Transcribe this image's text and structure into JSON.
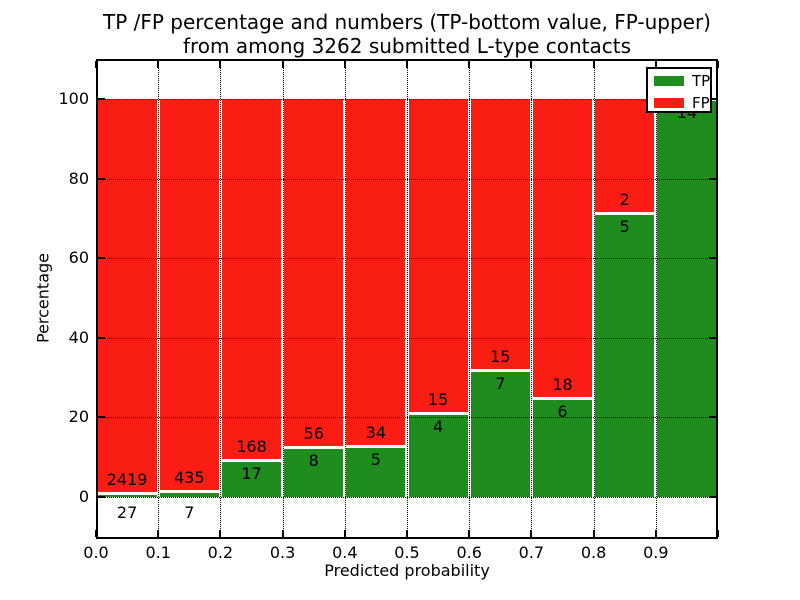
{
  "title": {
    "line1": "TP /FP percentage and numbers (TP-bottom value, FP-upper)",
    "line2": "from among 3262 submitted L-type contacts"
  },
  "axes": {
    "ylabel": "Percentage",
    "xlabel": "Predicted probability",
    "yticks": [
      0,
      20,
      40,
      60,
      80,
      100
    ],
    "xtick_labels": [
      "0.0",
      "0.1",
      "0.2",
      "0.3",
      "0.4",
      "0.5",
      "0.6",
      "0.7",
      "0.8",
      "0.9"
    ],
    "grid": true
  },
  "legend": {
    "position": "upper right",
    "items": [
      {
        "label": "TP",
        "color": "#1e8c1e"
      },
      {
        "label": "FP",
        "color": "#fa1d14"
      }
    ]
  },
  "colors": {
    "tp_green": "#1e8c1e",
    "fp_red": "#fa1d14",
    "axis_black": "#000000",
    "background": "#ffffff"
  },
  "chart_data": {
    "type": "bar",
    "stacked": true,
    "orientation": "vertical",
    "title": "TP /FP percentage and numbers (TP-bottom value, FP-upper) from among 3262 submitted L-type contacts",
    "xlabel": "Predicted probability",
    "ylabel": "Percentage",
    "xlim": [
      0.0,
      1.0
    ],
    "ylim": [
      -10.5,
      110
    ],
    "bin_edges": [
      0.0,
      0.1,
      0.2,
      0.3,
      0.4,
      0.5,
      0.6,
      0.7,
      0.8,
      0.9,
      1.0
    ],
    "categories": [
      "0.0-0.1",
      "0.1-0.2",
      "0.2-0.3",
      "0.3-0.4",
      "0.4-0.5",
      "0.5-0.6",
      "0.6-0.7",
      "0.7-0.8",
      "0.8-0.9",
      "0.9-1.0"
    ],
    "series": [
      {
        "name": "TP",
        "color": "#1e8c1e",
        "counts": [
          27,
          7,
          17,
          8,
          5,
          4,
          7,
          6,
          5,
          14
        ],
        "percent": [
          1.1,
          1.58,
          9.19,
          12.5,
          12.82,
          21.05,
          31.82,
          25.0,
          71.43,
          100.0
        ]
      },
      {
        "name": "FP",
        "color": "#fa1d14",
        "counts": [
          2419,
          435,
          168,
          56,
          34,
          15,
          15,
          18,
          2,
          0
        ],
        "percent": [
          98.9,
          98.42,
          90.81,
          87.5,
          87.18,
          78.95,
          68.18,
          75.0,
          28.57,
          0.0
        ]
      }
    ],
    "total_contacts": 3262,
    "legend_position": "upper right",
    "grid": true
  }
}
